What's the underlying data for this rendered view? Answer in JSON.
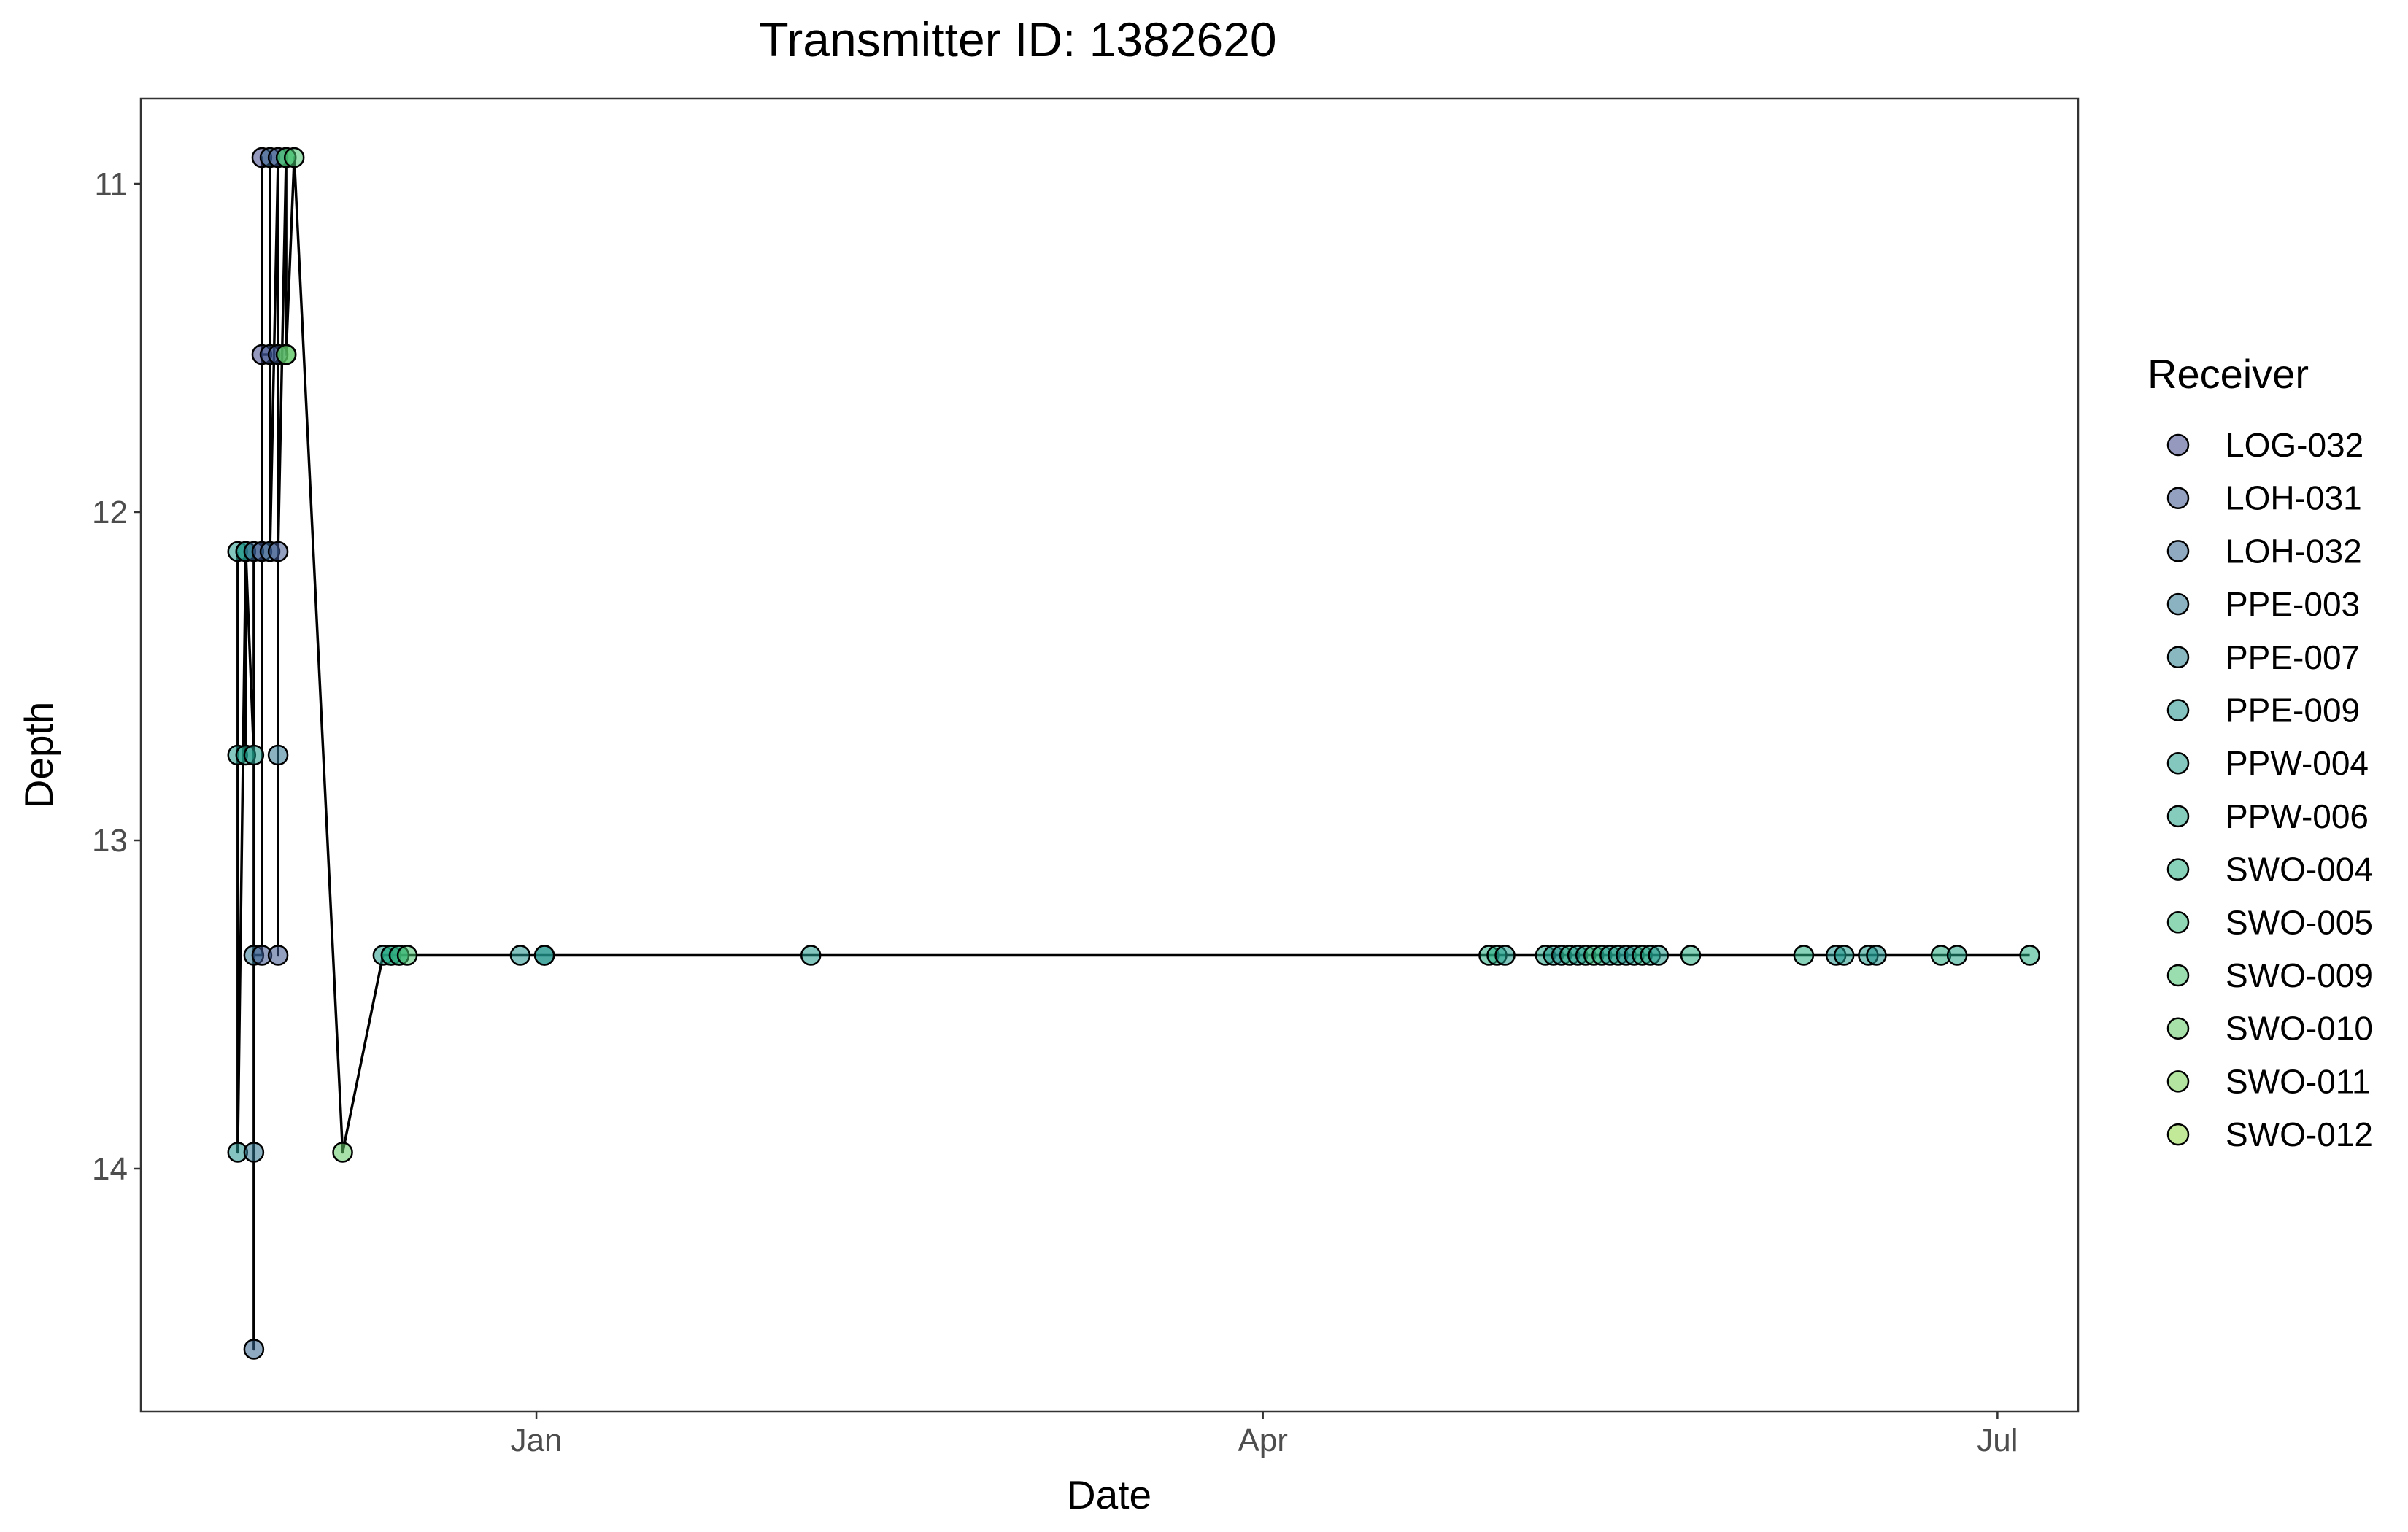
{
  "chart_data": {
    "type": "scatter",
    "title": "Transmitter ID: 1382620",
    "xlabel": "Date",
    "ylabel": "Depth",
    "x_axis_type": "date",
    "xlim": [
      "2024-11-13",
      "2025-07-11"
    ],
    "ylim": [
      10.74,
      14.74
    ],
    "y_reversed": true,
    "x_ticks": [
      {
        "date": "2025-01-01",
        "label": "Jan"
      },
      {
        "date": "2025-04-01",
        "label": "Apr"
      },
      {
        "date": "2025-07-01",
        "label": "Jul"
      }
    ],
    "y_ticks": [
      11,
      12,
      13,
      14
    ],
    "grid": false,
    "legend_title": "Receiver",
    "legend_position": "right",
    "series": [
      {
        "name": "LOG-032",
        "color": "#404688"
      },
      {
        "name": "LOH-031",
        "color": "#3b528b"
      },
      {
        "name": "LOH-032",
        "color": "#33638d"
      },
      {
        "name": "PPE-003",
        "color": "#2c728e"
      },
      {
        "name": "PPE-007",
        "color": "#287d8e"
      },
      {
        "name": "PPE-009",
        "color": "#21918c"
      },
      {
        "name": "PPW-004",
        "color": "#1f998a"
      },
      {
        "name": "PPW-006",
        "color": "#20a386"
      },
      {
        "name": "SWO-004",
        "color": "#27ad81"
      },
      {
        "name": "SWO-005",
        "color": "#35b779"
      },
      {
        "name": "SWO-009",
        "color": "#47c16e"
      },
      {
        "name": "SWO-010",
        "color": "#5ec962"
      },
      {
        "name": "SWO-011",
        "color": "#75d054"
      },
      {
        "name": "SWO-012",
        "color": "#8fd744"
      }
    ],
    "points": [
      [
        "2024-11-25",
        12.12,
        "PPW-004"
      ],
      [
        "2024-11-25",
        12.74,
        "PPW-004"
      ],
      [
        "2024-11-25",
        13.95,
        "PPE-009"
      ],
      [
        "2024-11-26",
        12.12,
        "PPW-006"
      ],
      [
        "2024-11-26",
        12.74,
        "PPW-006"
      ],
      [
        "2024-11-26",
        12.12,
        "PPE-009"
      ],
      [
        "2024-11-27",
        12.74,
        "PPW-004"
      ],
      [
        "2024-11-27",
        12.12,
        "LOH-032"
      ],
      [
        "2024-11-27",
        14.55,
        "LOH-032"
      ],
      [
        "2024-11-27",
        13.95,
        "PPE-003"
      ],
      [
        "2024-11-27",
        13.35,
        "PPE-003"
      ],
      [
        "2024-11-28",
        13.35,
        "LOH-031"
      ],
      [
        "2024-11-28",
        12.12,
        "LOH-031"
      ],
      [
        "2024-11-28",
        10.92,
        "LOG-032"
      ],
      [
        "2024-11-28",
        11.52,
        "LOG-032"
      ],
      [
        "2024-11-29",
        11.52,
        "LOH-031"
      ],
      [
        "2024-11-29",
        10.92,
        "LOH-032"
      ],
      [
        "2024-11-29",
        12.12,
        "LOH-032"
      ],
      [
        "2024-11-30",
        10.92,
        "LOH-031"
      ],
      [
        "2024-11-30",
        11.52,
        "LOH-031"
      ],
      [
        "2024-11-30",
        12.74,
        "PPE-003"
      ],
      [
        "2024-11-30",
        13.35,
        "LOH-031"
      ],
      [
        "2024-11-30",
        12.12,
        "LOH-031"
      ],
      [
        "2024-12-01",
        10.92,
        "SWO-005"
      ],
      [
        "2024-12-01",
        11.52,
        "SWO-004"
      ],
      [
        "2024-12-01",
        10.92,
        "SWO-009"
      ],
      [
        "2024-12-01",
        11.52,
        "SWO-011"
      ],
      [
        "2024-12-02",
        10.92,
        "SWO-009"
      ],
      [
        "2024-12-08",
        13.95,
        "SWO-010"
      ],
      [
        "2024-12-13",
        13.35,
        "PPW-004"
      ],
      [
        "2024-12-14",
        13.35,
        "PPW-006"
      ],
      [
        "2024-12-14",
        13.35,
        "SWO-004"
      ],
      [
        "2024-12-15",
        13.35,
        "PPE-009"
      ],
      [
        "2024-12-15",
        13.35,
        "SWO-005"
      ],
      [
        "2024-12-16",
        13.35,
        "SWO-009"
      ],
      [
        "2024-12-30",
        13.35,
        "PPE-009"
      ],
      [
        "2025-01-02",
        13.35,
        "PPW-004"
      ],
      [
        "2025-01-02",
        13.35,
        "PPE-009"
      ],
      [
        "2025-02-04",
        13.35,
        "PPW-004"
      ],
      [
        "2025-04-29",
        13.35,
        "SWO-004"
      ],
      [
        "2025-04-30",
        13.35,
        "SWO-004"
      ],
      [
        "2025-05-01",
        13.35,
        "PPW-004"
      ],
      [
        "2025-05-06",
        13.35,
        "PPW-006"
      ],
      [
        "2025-05-07",
        13.35,
        "PPW-004"
      ],
      [
        "2025-05-08",
        13.35,
        "PPE-009"
      ],
      [
        "2025-05-09",
        13.35,
        "SWO-004"
      ],
      [
        "2025-05-10",
        13.35,
        "PPW-004"
      ],
      [
        "2025-05-11",
        13.35,
        "PPW-006"
      ],
      [
        "2025-05-12",
        13.35,
        "SWO-005"
      ],
      [
        "2025-05-13",
        13.35,
        "SWO-004"
      ],
      [
        "2025-05-14",
        13.35,
        "PPW-004"
      ],
      [
        "2025-05-15",
        13.35,
        "PPW-006"
      ],
      [
        "2025-05-16",
        13.35,
        "PPE-009"
      ],
      [
        "2025-05-17",
        13.35,
        "PPW-004"
      ],
      [
        "2025-05-18",
        13.35,
        "SWO-004"
      ],
      [
        "2025-05-19",
        13.35,
        "PPW-006"
      ],
      [
        "2025-05-20",
        13.35,
        "PPW-004"
      ],
      [
        "2025-05-24",
        13.35,
        "SWO-004"
      ],
      [
        "2025-06-07",
        13.35,
        "SWO-004"
      ],
      [
        "2025-06-11",
        13.35,
        "PPE-009"
      ],
      [
        "2025-06-12",
        13.35,
        "PPW-004"
      ],
      [
        "2025-06-15",
        13.35,
        "PPW-004"
      ],
      [
        "2025-06-16",
        13.35,
        "PPE-009"
      ],
      [
        "2025-06-24",
        13.35,
        "SWO-004"
      ],
      [
        "2025-06-26",
        13.35,
        "PPW-006"
      ],
      [
        "2025-07-05",
        13.35,
        "SWO-004"
      ]
    ]
  }
}
